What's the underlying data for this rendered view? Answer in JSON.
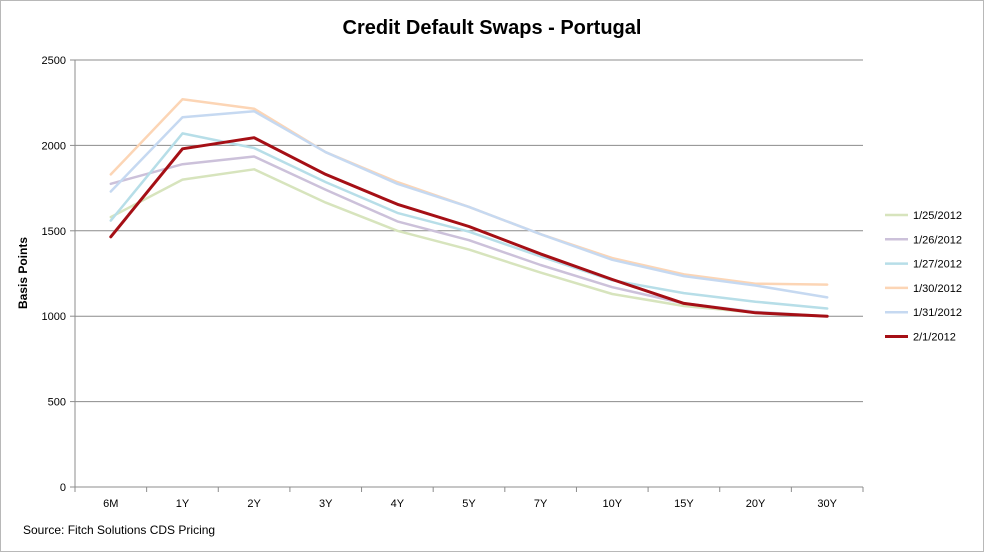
{
  "chart_data": {
    "type": "line",
    "title": "Credit Default Swaps - Portugal",
    "xlabel": "",
    "ylabel": "Basis Points",
    "source": "Source: Fitch Solutions CDS Pricing",
    "categories": [
      "6M",
      "1Y",
      "2Y",
      "3Y",
      "4Y",
      "5Y",
      "7Y",
      "10Y",
      "15Y",
      "20Y",
      "30Y"
    ],
    "ylim": [
      0,
      2500
    ],
    "yticks": [
      0,
      500,
      1000,
      1500,
      2000,
      2500
    ],
    "grid": true,
    "legend": "right",
    "series": [
      {
        "name": "1/25/2012",
        "color": "#d7e4bd",
        "values": [
          1580,
          1800,
          1860,
          1665,
          1500,
          1390,
          1255,
          1130,
          1060,
          1020,
          1000
        ]
      },
      {
        "name": "1/26/2012",
        "color": "#ccc1da",
        "values": [
          1775,
          1890,
          1935,
          1740,
          1555,
          1445,
          1300,
          1170,
          1075,
          1025,
          1000
        ]
      },
      {
        "name": "1/27/2012",
        "color": "#b7dee8",
        "values": [
          1560,
          2070,
          1985,
          1785,
          1605,
          1495,
          1350,
          1210,
          1135,
          1085,
          1045
        ]
      },
      {
        "name": "1/30/2012",
        "color": "#fcd5b5",
        "values": [
          1830,
          2270,
          2215,
          1960,
          1785,
          1640,
          1480,
          1340,
          1245,
          1190,
          1185
        ]
      },
      {
        "name": "1/31/2012",
        "color": "#c6d9f1",
        "values": [
          1730,
          2165,
          2200,
          1960,
          1775,
          1640,
          1480,
          1330,
          1235,
          1180,
          1110
        ]
      },
      {
        "name": "2/1/2012",
        "color": "#a50f15",
        "values": [
          1465,
          1980,
          2045,
          1830,
          1655,
          1525,
          1365,
          1215,
          1075,
          1020,
          1000
        ]
      }
    ]
  }
}
